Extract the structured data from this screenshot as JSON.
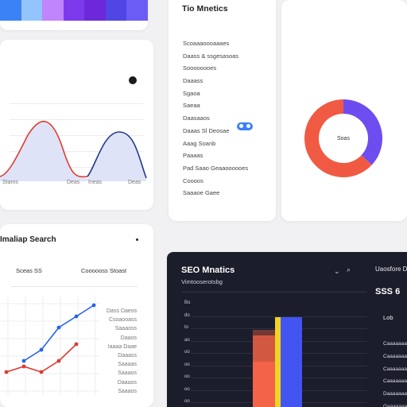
{
  "colors": {
    "swatches": [
      "#3b82f6",
      "#93c5fd",
      "#c084fc",
      "#7c3aed",
      "#6d28d9",
      "#4f46e5",
      "#6b5cf6"
    ],
    "line_red": "#e03a2f",
    "line_blue": "#1e3a8a",
    "donut_purple": "#6d4cf0",
    "donut_red": "#f05a43",
    "bar_blue": "#4355f0",
    "bar_yellow": "#f0d324",
    "bar_red": "#f26347",
    "dark_bg": "#1c1d2b"
  },
  "wave_card": {
    "menu_icon": "dot-menu-icon",
    "x_labels": [
      "Stams",
      "Deas",
      "Ineas",
      "Deas"
    ]
  },
  "metrics_card": {
    "title": "Tio Mnetics",
    "items": [
      "Scoaaaoooaaaes",
      "Daass & ssgesasoas",
      "Soooooooes",
      "Daaass",
      "Sgaoa",
      "Saeaa",
      "Daasaaos",
      "Daaas Sl Deosae",
      "Aaag Soanb",
      "Paaaas",
      "Pad Saao Geaaoooooes",
      "Coooos",
      "Saaaoe Gaee"
    ],
    "badge_icon": "info-pill-icon"
  },
  "donut": {
    "center_label": "Soas",
    "slices": [
      {
        "value": 37,
        "color": "#6d4cf0"
      },
      {
        "value": 63,
        "color": "#f05a43"
      }
    ]
  },
  "search_card": {
    "title": "Imaliap Search",
    "menu_icon": "dot-menu-icon",
    "stat_left": "Sceas SS",
    "stat_right": "Coooooss Stoast",
    "legend_items": [
      "Dass Daeos",
      "Csoaooass",
      "Saaaoss",
      "Daaos",
      "Iaaaa Daae",
      "Daaass",
      "Saaaas",
      "Saaaos",
      "Daaaos",
      "Saaaos"
    ],
    "blue_line_points": [
      {
        "x": 1,
        "y": 2
      },
      {
        "x": 2,
        "y": 3
      },
      {
        "x": 3,
        "y": 5
      },
      {
        "x": 4,
        "y": 6
      },
      {
        "x": 5,
        "y": 7
      }
    ],
    "red_line_points": [
      {
        "x": 0,
        "y": 1
      },
      {
        "x": 1,
        "y": 1.5
      },
      {
        "x": 2,
        "y": 1
      },
      {
        "x": 3,
        "y": 2
      },
      {
        "x": 4,
        "y": 3.5
      }
    ]
  },
  "seo_card": {
    "title": "SEO Mnatics",
    "subtitle": "Vimtooserotsbg",
    "y_ticks": [
      "Bo",
      "do",
      "to",
      "ao",
      "oo",
      "oo",
      "oo",
      "oo",
      "oo"
    ],
    "icons": [
      "chevron-down-icon",
      "search-icon"
    ]
  },
  "right_panel": {
    "header": "Uaosfore Dmaea",
    "value": "SSS 6",
    "sub_label": "Lob",
    "rows": [
      "Caaaaaaaaaaaasso",
      "Caaaaaaaaso",
      "Caaaaaaaaaaaoso",
      "Caaaaaaaaaaaaaaaa",
      "Daaaaaaaaaaaa",
      "Gaaaaaaaaaaa",
      "Saaaaaaaaaaaaa"
    ]
  }
}
